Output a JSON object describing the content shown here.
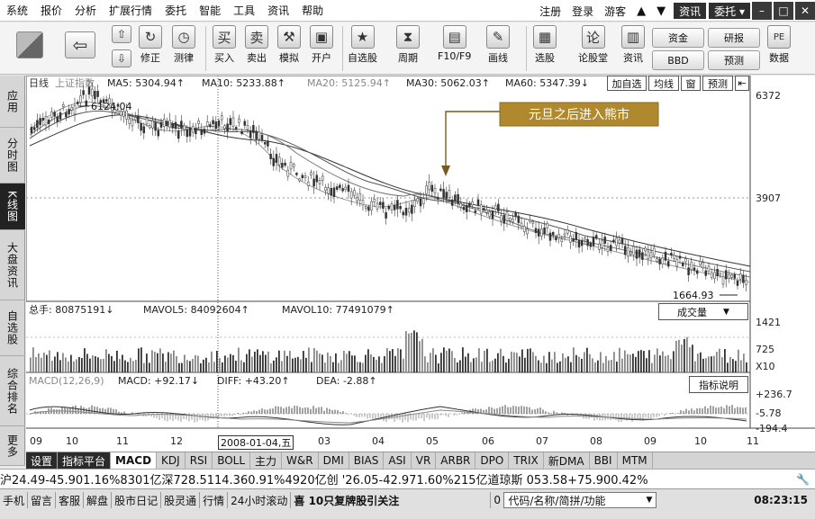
{
  "menu": [
    "系统",
    "报价",
    "分析",
    "扩展行情",
    "委托",
    "智能",
    "工具",
    "资讯",
    "帮助"
  ],
  "menu_right": {
    "register": "注册",
    "login": "登录",
    "guest": "游客",
    "news": "资讯",
    "trade": "委托 ▾"
  },
  "toolbar": {
    "buttons": [
      {
        "label": "修正",
        "icon": "correct-icon"
      },
      {
        "label": "测律",
        "icon": "clock-icon"
      },
      {
        "label": "买入",
        "glyph": "买"
      },
      {
        "label": "卖出",
        "glyph": "卖"
      },
      {
        "label": "模拟",
        "icon": "hammer-icon"
      },
      {
        "label": "开户",
        "icon": "lock-icon"
      },
      {
        "label": "自选股",
        "icon": "star-icon"
      },
      {
        "label": "周期",
        "icon": "cycle-icon"
      },
      {
        "label": "F10/F9",
        "icon": "f10-icon"
      },
      {
        "label": "画线",
        "icon": "pen-icon"
      },
      {
        "label": "选股",
        "icon": "select-icon"
      },
      {
        "label": "论股堂",
        "glyph": "论"
      },
      {
        "label": "资讯",
        "icon": "news-icon"
      },
      {
        "label": "数据",
        "glyph": "PE"
      }
    ],
    "small": [
      "资金",
      "研报",
      "BBD",
      "预测"
    ]
  },
  "leftnav": [
    "应用",
    "分时图",
    "K线图",
    "大盘资讯",
    "自选股",
    "综合排名",
    "更多"
  ],
  "chart": {
    "ma_line": {
      "period": "日线",
      "name": "上证指数",
      "ma5": "MA5: 5304.94↑",
      "ma10": "MA10: 5233.88↑",
      "ma20": "MA20: 5125.94↑",
      "ma30": "MA30: 5062.03↑",
      "ma60": "MA60: 5347.39↓"
    },
    "right_btns": [
      "加自选",
      "均线",
      "窗",
      "预测"
    ],
    "price_scale": [
      "6372",
      "3907"
    ],
    "high_label": "6124.04",
    "low_label": "1664.93",
    "annotation": "元旦之后进入熊市",
    "vol_line": {
      "total": "总手: 80875191↓",
      "mavol5": "MAVOL5: 84092604↑",
      "mavol10": "MAVOL10: 77491079↑"
    },
    "vol_btn": "成交量",
    "vol_scale": [
      "1421",
      "725",
      "X10"
    ],
    "macd_line": {
      "name": "MACD(12,26,9)",
      "macd": "MACD: +92.17↓",
      "diff": "DIFF: +43.20↑",
      "dea": "DEA: -2.88↑"
    },
    "macd_btn": "指标说明",
    "macd_scale": [
      "+236.7",
      "-5.78",
      "-194.4"
    ],
    "x_axis": [
      "09",
      "10",
      "11",
      "12",
      "03",
      "04",
      "05",
      "06",
      "07",
      "08",
      "09",
      "10",
      "11"
    ],
    "cursor_date": "2008-01-04,五"
  },
  "tabs": [
    "设置",
    "指标平台",
    "MACD",
    "KDJ",
    "RSI",
    "BOLL",
    "主力",
    "W&R",
    "DMI",
    "BIAS",
    "ASI",
    "VR",
    "ARBR",
    "DPO",
    "TRIX",
    "新DMA",
    "BBI",
    "MTM"
  ],
  "ticker": "沪24.49-45.901.16%8301亿深728.5114.360.91%4920亿创 '26.05-42.971.60%215亿道琼斯 053.58+75.900.42%",
  "statusbar": {
    "items": [
      "手机",
      "留言",
      "客服",
      "解盘",
      "股市日记",
      "股灵通",
      "行情",
      "24小时滚动"
    ],
    "message": "喜 10只复牌股引关注",
    "count": "0",
    "search_placeholder": "代码/名称/简拼/功能",
    "time": "08:23:15"
  },
  "colors": {
    "annotation_bg": "#b0892e",
    "annotation_border": "#8a6a1c",
    "chart_bg": "#ffffff"
  }
}
